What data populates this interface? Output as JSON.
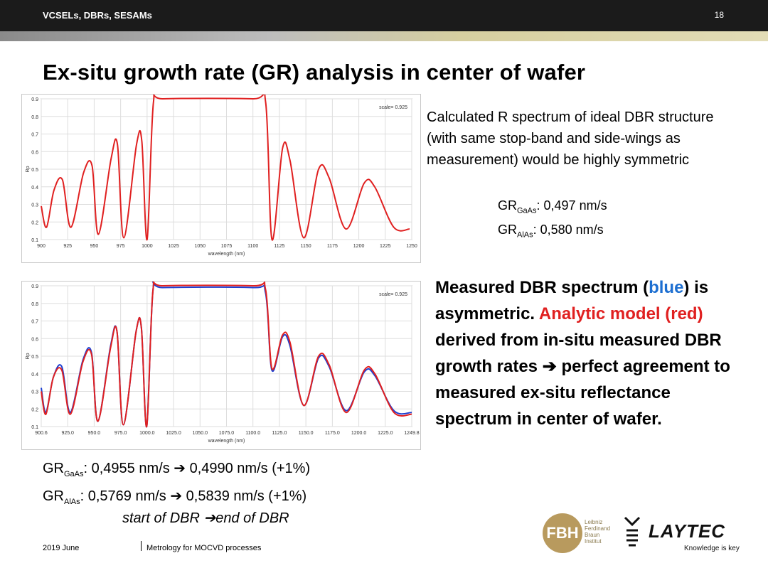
{
  "header": {
    "deck_title": "VCSELs, DBRs, SESAMs",
    "slide_number": "18"
  },
  "title": "Ex-situ growth rate (GR) analysis in center of wafer",
  "plot_top": {
    "scale_label": "scale= 0.925",
    "y_label": "Rp",
    "x_label": "wavelength (nm)",
    "y_ticks": [
      "0.1",
      "0.2",
      "0.3",
      "0.4",
      "0.5",
      "0.6",
      "0.7",
      "0.8",
      "0.9"
    ],
    "x_ticks": [
      "900",
      "925",
      "950",
      "975",
      "1000",
      "1025",
      "1050",
      "1075",
      "1100",
      "1125",
      "1150",
      "1175",
      "1200",
      "1225",
      "1250"
    ]
  },
  "plot_bottom": {
    "scale_label": "scale= 0.925",
    "y_label": "Rp",
    "x_label": "wavelength (nm)",
    "y_ticks": [
      "0.1",
      "0.2",
      "0.3",
      "0.4",
      "0.5",
      "0.6",
      "0.7",
      "0.8",
      "0.9"
    ],
    "x_ticks": [
      "900.6",
      "925.0",
      "950.0",
      "975.0",
      "1000.0",
      "1025.0",
      "1050.0",
      "1075.0",
      "1100.0",
      "1125.0",
      "1150.0",
      "1175.0",
      "1200.0",
      "1225.0",
      "1249.8"
    ]
  },
  "chart_data": [
    {
      "type": "line",
      "x_range": [
        900,
        1250
      ],
      "ylim": [
        0.1,
        0.9
      ],
      "xlabel": "wavelength (nm)",
      "ylabel": "Rp",
      "series": [
        {
          "color": "#e02020",
          "points": [
            [
              900,
              0.29
            ],
            [
              905,
              0.17
            ],
            [
              912,
              0.38
            ],
            [
              920,
              0.44
            ],
            [
              928,
              0.17
            ],
            [
              940,
              0.48
            ],
            [
              948,
              0.52
            ],
            [
              954,
              0.13
            ],
            [
              966,
              0.56
            ],
            [
              972,
              0.64
            ],
            [
              978,
              0.11
            ],
            [
              990,
              0.64
            ],
            [
              995,
              0.66
            ],
            [
              1000,
              0.1
            ],
            [
              1006,
              0.88
            ],
            [
              1015,
              0.9
            ],
            [
              1100,
              0.9
            ],
            [
              1112,
              0.88
            ],
            [
              1118,
              0.1
            ],
            [
              1128,
              0.62
            ],
            [
              1135,
              0.55
            ],
            [
              1148,
              0.11
            ],
            [
              1162,
              0.5
            ],
            [
              1172,
              0.45
            ],
            [
              1188,
              0.16
            ],
            [
              1205,
              0.42
            ],
            [
              1215,
              0.4
            ],
            [
              1233,
              0.17
            ],
            [
              1248,
              0.16
            ]
          ]
        }
      ]
    },
    {
      "type": "line",
      "x_range": [
        900.6,
        1249.8
      ],
      "ylim": [
        0.1,
        0.9
      ],
      "xlabel": "wavelength (nm)",
      "ylabel": "Rp",
      "series": [
        {
          "color": "#1d3fd1",
          "points": [
            [
              900.6,
              0.32
            ],
            [
              905,
              0.18
            ],
            [
              912,
              0.38
            ],
            [
              920,
              0.44
            ],
            [
              928,
              0.18
            ],
            [
              940,
              0.48
            ],
            [
              948,
              0.52
            ],
            [
              954,
              0.13
            ],
            [
              966,
              0.56
            ],
            [
              972,
              0.64
            ],
            [
              978,
              0.11
            ],
            [
              990,
              0.64
            ],
            [
              995,
              0.66
            ],
            [
              1000,
              0.1
            ],
            [
              1006,
              0.88
            ],
            [
              1015,
              0.89
            ],
            [
              1100,
              0.89
            ],
            [
              1112,
              0.86
            ],
            [
              1118,
              0.42
            ],
            [
              1128,
              0.61
            ],
            [
              1135,
              0.56
            ],
            [
              1148,
              0.22
            ],
            [
              1162,
              0.49
            ],
            [
              1172,
              0.44
            ],
            [
              1188,
              0.19
            ],
            [
              1205,
              0.41
            ],
            [
              1215,
              0.39
            ],
            [
              1233,
              0.19
            ],
            [
              1249.8,
              0.18
            ]
          ]
        },
        {
          "color": "#e02020",
          "points": [
            [
              900.6,
              0.3
            ],
            [
              905,
              0.17
            ],
            [
              912,
              0.38
            ],
            [
              920,
              0.42
            ],
            [
              928,
              0.17
            ],
            [
              940,
              0.47
            ],
            [
              948,
              0.51
            ],
            [
              954,
              0.13
            ],
            [
              966,
              0.55
            ],
            [
              972,
              0.64
            ],
            [
              978,
              0.11
            ],
            [
              990,
              0.64
            ],
            [
              995,
              0.66
            ],
            [
              1000,
              0.1
            ],
            [
              1006,
              0.88
            ],
            [
              1015,
              0.9
            ],
            [
              1100,
              0.9
            ],
            [
              1112,
              0.88
            ],
            [
              1118,
              0.43
            ],
            [
              1128,
              0.62
            ],
            [
              1135,
              0.58
            ],
            [
              1148,
              0.22
            ],
            [
              1162,
              0.5
            ],
            [
              1172,
              0.45
            ],
            [
              1188,
              0.18
            ],
            [
              1205,
              0.42
            ],
            [
              1215,
              0.4
            ],
            [
              1233,
              0.18
            ],
            [
              1249.8,
              0.17
            ]
          ]
        }
      ]
    }
  ],
  "text_top": {
    "description": "Calculated R spectrum of ideal DBR structure (with same stop-band and side-wings as measurement) would be highly symmetric",
    "gr_prefix": "GR",
    "gaas_sub": "GaAs",
    "gaas_value": ": 0,497 nm/s",
    "alas_sub": "AlAs",
    "alas_value": ":  0,580 nm/s"
  },
  "text_bottom": {
    "part1": "Measured DBR spectrum (",
    "blue_word": "blue",
    "part2": ") is asymmetric. ",
    "red_phrase": "Analytic model (red)",
    "part3": " derived from in-situ measured DBR growth rates ",
    "arrow": "➔",
    "part4": " perfect agreement to measured ex-situ reflectance spectrum in center of wafer."
  },
  "gr_comparison": {
    "gr_prefix": "GR",
    "gaas_sub": "GaAs",
    "gaas_line": ": 0,4955 nm/s  ➔  0,4990 nm/s (+1%)",
    "alas_sub": "AlAs",
    "alas_line": ":  0,5769 nm/s  ➔  0,5839 nm/s (+1%)",
    "start_end": "start of DBR ➔end of DBR"
  },
  "footer": {
    "date": "2019 June",
    "title": "Metrology for MOCVD processes"
  },
  "logos": {
    "fbh": "FBH",
    "fbh_line1": "Leibniz",
    "fbh_line2": "Ferdinand",
    "fbh_line3": "Braun",
    "fbh_line4": "Institut",
    "laytec": "LAYTEC",
    "laytec_tagline": "Knowledge is key"
  }
}
